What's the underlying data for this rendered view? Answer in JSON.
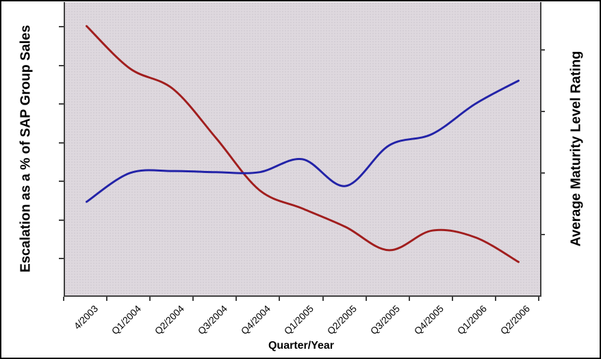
{
  "chart_data": {
    "type": "line",
    "smoothed": true,
    "title": "",
    "xlabel": "Quarter/Year",
    "ylabel_left": "Escalation as a % of SAP Group Sales",
    "ylabel_right": "Average Maturity Level Rating",
    "categories": [
      "4/2003",
      "Q1/2004",
      "Q2/2004",
      "Q3/2004",
      "Q4/2004",
      "Q1/2005",
      "Q2/2005",
      "Q3/2005",
      "Q4/2005",
      "Q1/2006",
      "Q2/2006"
    ],
    "y_axis_numeric_labels": "none shown (unlabeled tick marks only)",
    "y_value_units": "fraction of plot height (0 = axis bottom, 1 = plot top)",
    "ylim": [
      0,
      1
    ],
    "legend": "none",
    "grid": "off",
    "series": [
      {
        "name": "escalation-pct-of-sap-group-sales",
        "axis": "left",
        "color": "#A11E1E",
        "values": [
          0.918,
          0.774,
          0.704,
          0.536,
          0.359,
          0.296,
          0.233,
          0.154,
          0.221,
          0.198,
          0.114
        ]
      },
      {
        "name": "average-maturity-level-rating",
        "axis": "right",
        "color": "#2323A8",
        "values": [
          0.319,
          0.417,
          0.424,
          0.42,
          0.42,
          0.464,
          0.373,
          0.511,
          0.55,
          0.653,
          0.732
        ]
      }
    ],
    "colors": {
      "plot_background": "#DED8DE",
      "axis_line": "#3f3f3f",
      "outer_border": "#000000",
      "text": "#000000"
    }
  }
}
